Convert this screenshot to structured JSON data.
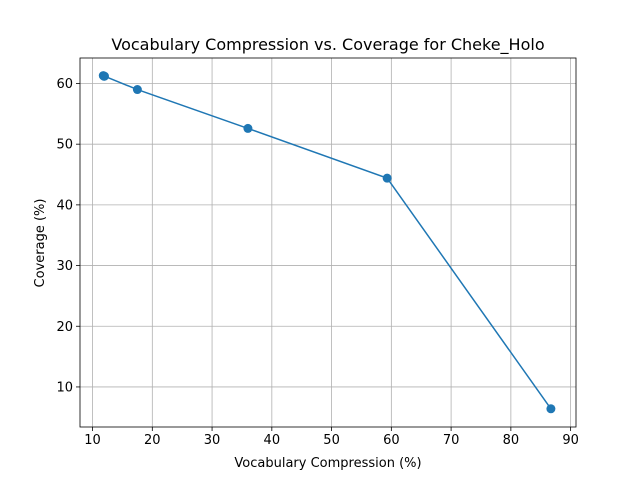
{
  "chart_data": {
    "type": "line",
    "title": "Vocabulary Compression vs. Coverage for Cheke_Holo",
    "xlabel": "Vocabulary Compression (%)",
    "ylabel": "Coverage (%)",
    "xlim": [
      7.9,
      90.9
    ],
    "ylim": [
      3.4,
      64.2
    ],
    "xticks": [
      10,
      20,
      30,
      40,
      50,
      60,
      70,
      80,
      90
    ],
    "yticks": [
      10,
      20,
      30,
      40,
      50,
      60
    ],
    "grid": true,
    "marker": "circle",
    "color": "#1f77b4",
    "series": [
      {
        "x": [
          11.8,
          11.9,
          12.0,
          17.5,
          36.0,
          59.3,
          86.7
        ],
        "y": [
          61.3,
          61.2,
          61.2,
          59.0,
          52.6,
          44.4,
          6.4
        ]
      }
    ]
  }
}
